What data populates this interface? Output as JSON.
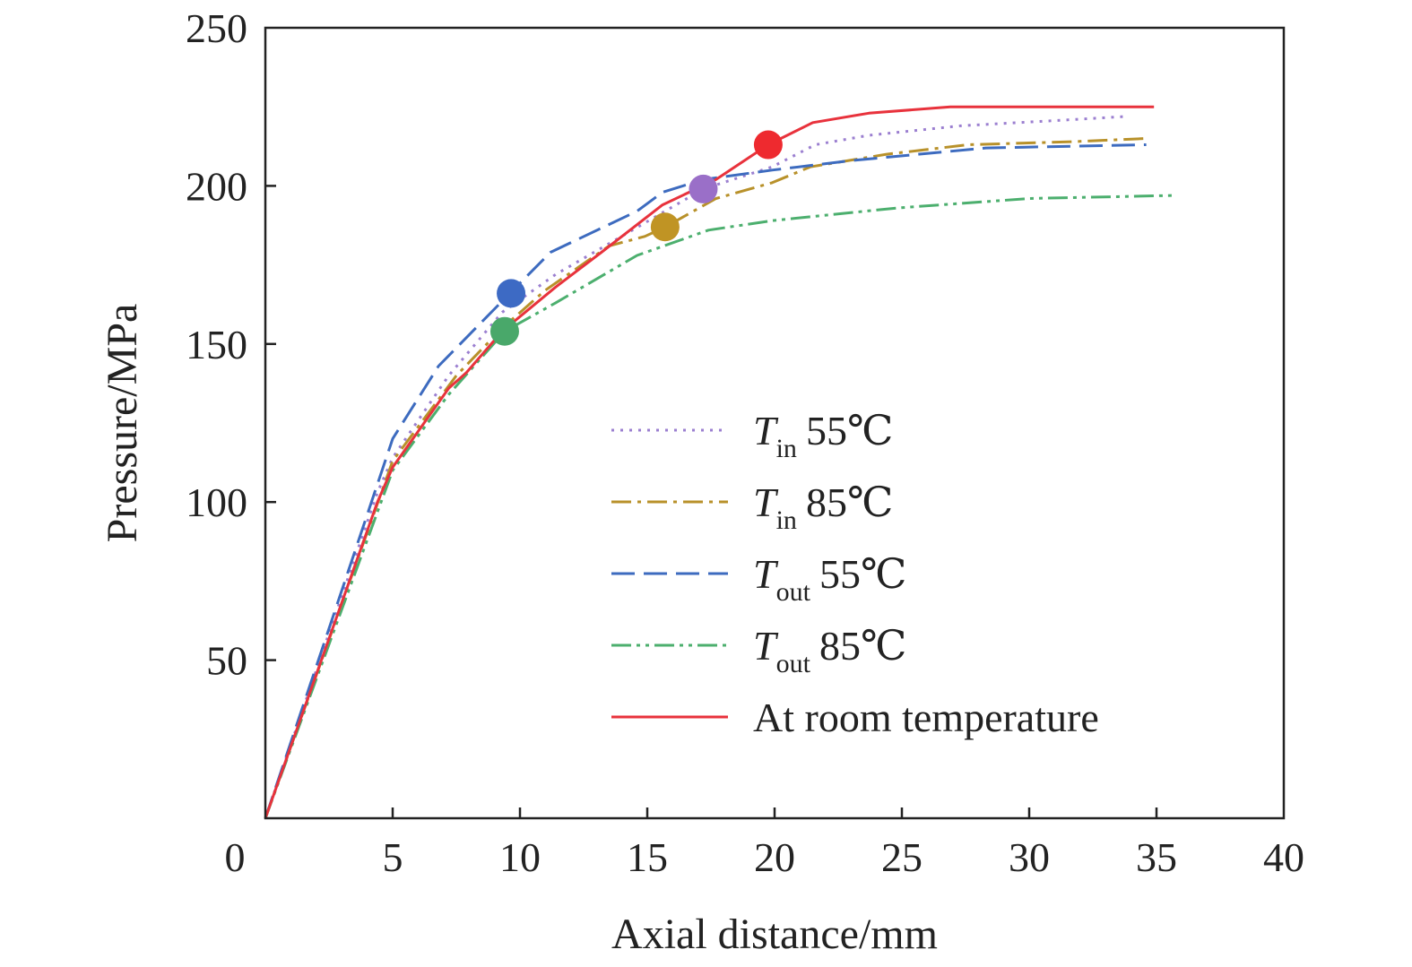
{
  "chart_data": {
    "type": "line",
    "xlabel": "Axial distance/mm",
    "ylabel": "Pressure/MPa",
    "xlim": [
      0,
      40
    ],
    "ylim": [
      0,
      250
    ],
    "xticks": [
      "0",
      "5",
      "10",
      "15",
      "20",
      "25",
      "30",
      "35",
      "40"
    ],
    "yticks": [
      "50",
      "100",
      "150",
      "200",
      "250"
    ],
    "grid": false,
    "legend_position": "center-right",
    "series": [
      {
        "name": "T in 55℃",
        "T": "T",
        "sub": "in",
        "temp": "55℃",
        "color": "#9b7fd0",
        "dash": "3,7",
        "x": [
          0,
          4.4,
          5,
          7.2,
          9.3,
          11.4,
          14.2,
          17.2,
          19.9,
          21.6,
          23.7,
          27.3,
          31.8,
          33.9
        ],
        "y": [
          0,
          103,
          114,
          140,
          160,
          172,
          185,
          199,
          206,
          213,
          216,
          219,
          221,
          222
        ],
        "marker": {
          "x": 17.2,
          "y": 199,
          "color": "#9a6fc8"
        }
      },
      {
        "name": "T in 85℃",
        "T": "T",
        "sub": "in",
        "temp": "85℃",
        "color": "#b8912a",
        "dash": "22,7,4,7",
        "x": [
          0,
          5,
          7.5,
          9.3,
          11,
          13.5,
          14.9,
          15.7,
          17.7,
          19.9,
          21.4,
          24.4,
          27.6,
          31.8,
          34.6
        ],
        "y": [
          0,
          113,
          140,
          155,
          167,
          181,
          184,
          187,
          196,
          201,
          206,
          210,
          213,
          214,
          215
        ],
        "marker": {
          "x": 15.7,
          "y": 187,
          "color": "#c09424"
        }
      },
      {
        "name": "T out 55℃",
        "T": "T",
        "sub": "out",
        "temp": "55℃",
        "color": "#3d6bbf",
        "dash": "26,10",
        "x": [
          0,
          5,
          6.8,
          9.6,
          11.2,
          14.6,
          15.6,
          17.2,
          19.9,
          23,
          28.3,
          34.6
        ],
        "y": [
          0,
          120,
          143,
          166,
          179,
          192,
          198,
          202,
          205,
          208,
          212,
          213
        ],
        "marker": {
          "x": 9.65,
          "y": 166,
          "color": "#3d6ac4"
        }
      },
      {
        "name": "T out 85℃",
        "T": "T",
        "sub": "out",
        "temp": "85℃",
        "color": "#4caf6e",
        "dash": "22,6,4,6,4,6",
        "x": [
          0,
          5,
          7.2,
          9.4,
          11.4,
          14.6,
          17.4,
          19.9,
          24.8,
          30,
          35.8
        ],
        "y": [
          0,
          110,
          134,
          154,
          163,
          178,
          186,
          189,
          193,
          196,
          197
        ],
        "marker": {
          "x": 9.4,
          "y": 154,
          "color": "#49a86a"
        }
      },
      {
        "name": "At room temperature",
        "T": "",
        "sub": "",
        "temp": "At room temperature",
        "color": "#e8323c",
        "dash": "",
        "x": [
          0,
          4.4,
          5,
          7.2,
          7.9,
          9.3,
          11.4,
          13.2,
          15.6,
          17.7,
          19.75,
          21.5,
          23.7,
          26.9,
          34.9
        ],
        "y": [
          0,
          100,
          111,
          136,
          141,
          154,
          168,
          179,
          194,
          202,
          213,
          220,
          223,
          225,
          225
        ],
        "marker": {
          "x": 19.75,
          "y": 213,
          "color": "#ee2a2f"
        }
      }
    ]
  }
}
